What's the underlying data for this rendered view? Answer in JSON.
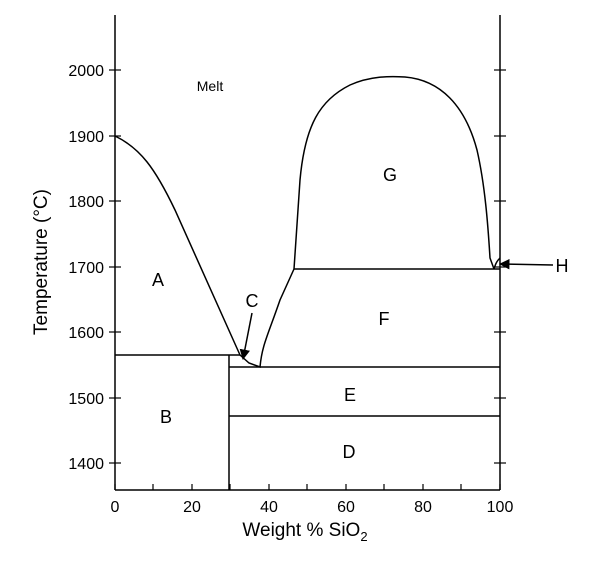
{
  "diagram": {
    "type": "phase-diagram",
    "xlabel_prefix": "Weight % SiO",
    "xlabel_subscript": "2",
    "ylabel": "Temperature (°C)",
    "x_ticks": [
      "0",
      "20",
      "40",
      "60",
      "80",
      "100"
    ],
    "y_ticks": [
      "2000",
      "1900",
      "1800",
      "1700",
      "1600",
      "1500",
      "1400"
    ],
    "xlim": [
      0,
      100
    ],
    "ylim": [
      1350,
      2090
    ],
    "labels": {
      "melt": "Melt",
      "a": "A",
      "b": "B",
      "c": "C",
      "d": "D",
      "e": "E",
      "f": "F",
      "g": "G",
      "h": "H"
    }
  }
}
